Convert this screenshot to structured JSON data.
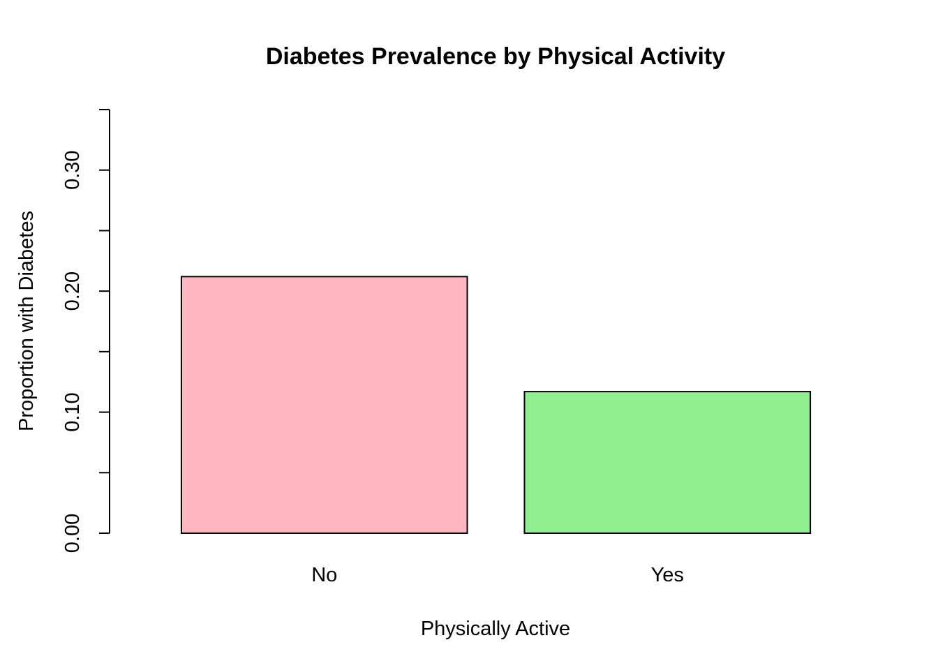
{
  "chart_data": {
    "type": "bar",
    "title": "Diabetes Prevalence by Physical Activity",
    "xlabel": "Physically Active",
    "ylabel": "Proportion with Diabetes",
    "categories": [
      "No",
      "Yes"
    ],
    "values": [
      0.212,
      0.117
    ],
    "colors": [
      "#FFB6C1",
      "#90EE90"
    ],
    "ylim": [
      0,
      0.35
    ],
    "yticks": [
      0,
      0.05,
      0.1,
      0.15,
      0.2,
      0.25,
      0.3,
      0.35
    ],
    "ytick_labels": [
      "0.00",
      "",
      "0.10",
      "",
      "0.20",
      "",
      "0.30",
      ""
    ],
    "grid": false,
    "legend": "none"
  }
}
